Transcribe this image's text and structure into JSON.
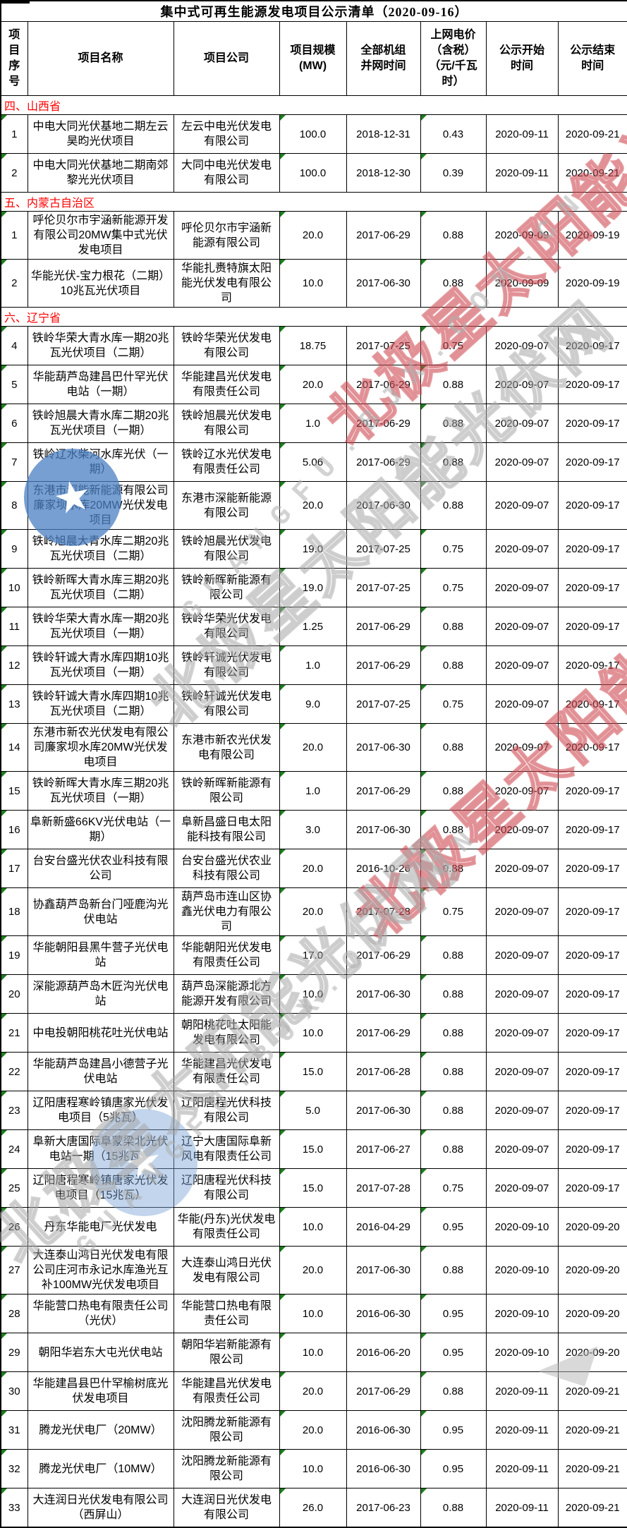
{
  "title": "集中式可再生能源发电项目公示清单（2020-09-16）",
  "columns": [
    "项目序号",
    "项目名称",
    "项目公司",
    "项目规模(MW)",
    "全部机组并网时间",
    "上网电价（含税）（元/千瓦时）",
    "公示开始时间",
    "公示结束时间"
  ],
  "green_marker_columns": [
    0,
    3,
    5
  ],
  "sections": [
    {
      "label": "四、山西省",
      "rows": [
        [
          "1",
          "中电大同光伏基地二期左云昊昀光伏项目",
          "左云中电光伏发电有限公司",
          "100.0",
          "2018-12-31",
          "0.43",
          "2020-09-11",
          "2020-09-21"
        ],
        [
          "2",
          "中电大同光伏基地二期南郊黎光光伏项目",
          "大同中电光伏发电有限公司",
          "100.0",
          "2018-12-30",
          "0.39",
          "2020-09-11",
          "2020-09-21"
        ]
      ]
    },
    {
      "label": "五、内蒙古自治区",
      "rows": [
        [
          "1",
          "呼伦贝尔市宇涵新能源开发有限公司20MW集中式光伏发电项目",
          "呼伦贝尔市宇涵新能源有限公司",
          "20.0",
          "2017-06-29",
          "0.88",
          "2020-09-09",
          "2020-09-19"
        ],
        [
          "2",
          "华能光伏-宝力根花（二期）10兆瓦光伏项目",
          "华能扎赉特旗太阳能光伏发电有限公司",
          "10.0",
          "2017-06-30",
          "0.88",
          "2020-09-09",
          "2020-09-19"
        ]
      ]
    },
    {
      "label": "六、辽宁省",
      "rows": [
        [
          "4",
          "铁岭华荣大青水库一期20兆瓦光伏项目（二期）",
          "铁岭华荣光伏发电有限公司",
          "18.75",
          "2017-07-25",
          "0.75",
          "2020-09-07",
          "2020-09-17"
        ],
        [
          "5",
          "华能葫芦岛建昌巴什罕光伏电站（一期）",
          "华能建昌光伏发电有限责任公司",
          "20.0",
          "2017-06-29",
          "0.88",
          "2020-09-07",
          "2020-09-17"
        ],
        [
          "6",
          "铁岭旭晨大青水库二期20兆瓦光伏项目（一期）",
          "铁岭旭晨光伏发电有限公司",
          "1.0",
          "2017-06-29",
          "0.88",
          "2020-09-07",
          "2020-09-17"
        ],
        [
          "7",
          "铁岭辽水柴河水库光伏（一期）",
          "铁岭辽水光伏发电有限责任公司",
          "5.06",
          "2017-06-29",
          "0.88",
          "2020-09-07",
          "2020-09-17"
        ],
        [
          "8",
          "东港市深能新能源有限公司廉家坝水库20MW光伏发电项目",
          "东港市深能新能源有限公司",
          "20.0",
          "2017-06-30",
          "0.88",
          "2020-09-07",
          "2020-09-17"
        ],
        [
          "9",
          "铁岭旭晨大青水库二期20兆瓦光伏项目（二期）",
          "铁岭旭晨光伏发电有限公司",
          "19.0",
          "2017-07-25",
          "0.75",
          "2020-09-07",
          "2020-09-17"
        ],
        [
          "10",
          "铁岭新晖大青水库三期20兆瓦光伏项目（二期）",
          "铁岭新晖新能源有限公司",
          "19.0",
          "2017-07-25",
          "0.75",
          "2020-09-07",
          "2020-09-17"
        ],
        [
          "11",
          "铁岭华荣大青水库一期20兆瓦光伏项目（一期）",
          "铁岭华荣光伏发电有限公司",
          "1.25",
          "2017-06-29",
          "0.88",
          "2020-09-07",
          "2020-09-17"
        ],
        [
          "12",
          "铁岭轩诚大青水库四期10兆瓦光伏项目（一期）",
          "铁岭轩诚光伏发电有限公司",
          "1.0",
          "2017-06-29",
          "0.88",
          "2020-09-07",
          "2020-09-17"
        ],
        [
          "13",
          "铁岭轩诚大青水库四期10兆瓦光伏项目（二期）",
          "铁岭轩诚光伏发电有限公司",
          "9.0",
          "2017-07-25",
          "0.75",
          "2020-09-07",
          "2020-09-17"
        ],
        [
          "14",
          "东港市新农光伏发电有限公司廉家坝水库20MW光伏发电项目",
          "东港市新农光伏发电有限公司",
          "20.0",
          "2017-06-30",
          "0.88",
          "2020-09-07",
          "2020-09-17"
        ],
        [
          "15",
          "铁岭新晖大青水库三期20兆瓦光伏项目（一期）",
          "铁岭新晖新能源有限公司",
          "1.0",
          "2017-06-29",
          "0.88",
          "2020-09-07",
          "2020-09-17"
        ],
        [
          "16",
          "阜新新盛66KV光伏电站（一期）",
          "阜新昌盛日电太阳能科技有限公司",
          "3.0",
          "2017-06-30",
          "0.88",
          "2020-09-07",
          "2020-09-17"
        ],
        [
          "17",
          "台安台盛光伏农业科技有限公司",
          "台安台盛光伏农业科技有限公司",
          "20.0",
          "2016-10-26",
          "0.88",
          "2020-09-07",
          "2020-09-17"
        ],
        [
          "18",
          "协鑫葫芦岛新台门哑鹿沟光伏电站",
          "葫芦岛市连山区协鑫光伏电力有限公司",
          "20.0",
          "2017-07-28",
          "0.75",
          "2020-09-07",
          "2020-09-17"
        ],
        [
          "19",
          "华能朝阳县黑牛营子光伏电站",
          "华能朝阳光伏发电有限责任公司",
          "17.0",
          "2017-06-29",
          "0.88",
          "2020-09-07",
          "2020-09-17"
        ],
        [
          "20",
          "深能源葫芦岛木匠沟光伏电站",
          "葫芦岛深能源北方能源开发有限公司",
          "10.0",
          "2017-06-30",
          "0.88",
          "2020-09-07",
          "2020-09-17"
        ],
        [
          "21",
          "中电投朝阳桃花吐光伏电站",
          "朝阳桃花吐太阳能发电有限公司",
          "10.0",
          "2017-06-29",
          "0.88",
          "2020-09-07",
          "2020-09-17"
        ],
        [
          "22",
          "华能葫芦岛建昌小德营子光伏电站",
          "华能建昌光伏发电有限责任公司",
          "15.0",
          "2017-06-28",
          "0.88",
          "2020-09-07",
          "2020-09-17"
        ],
        [
          "23",
          "辽阳唐程寒岭镇唐家光伏发电项目（5兆瓦）",
          "辽阳唐程光伏科技有限公司",
          "5.0",
          "2017-06-30",
          "0.88",
          "2020-09-07",
          "2020-09-17"
        ],
        [
          "24",
          "阜新大唐国际阜蒙梁北光伏电站一期（15兆瓦）",
          "辽宁大唐国际阜新风电有限责任公司",
          "15.0",
          "2017-06-27",
          "0.88",
          "2020-09-07",
          "2020-09-17"
        ],
        [
          "25",
          "辽阳唐程寒岭镇唐家光伏发电项目（15兆瓦）",
          "辽阳唐程光伏科技有限公司",
          "15.0",
          "2017-07-28",
          "0.75",
          "2020-09-07",
          "2020-09-17"
        ],
        [
          "26",
          "丹东华能电厂光伏发电",
          "华能(丹东)光伏发电有限责任公司",
          "10.0",
          "2016-04-29",
          "0.95",
          "2020-09-10",
          "2020-09-20"
        ],
        [
          "27",
          "大连泰山鸿日光伏发电有限公司庄河市永记水库渔光互补100MW光伏发电项目",
          "大连泰山鸿日光伏发电有限公司",
          "20.0",
          "2017-06-30",
          "0.88",
          "2020-09-10",
          "2020-09-20"
        ],
        [
          "28",
          "华能营口热电有限责任公司（光伏）",
          "华能营口热电有限责任公司",
          "10.0",
          "2016-06-30",
          "0.95",
          "2020-09-10",
          "2020-09-20"
        ],
        [
          "29",
          "朝阳华岩东大屯光伏电站",
          "朝阳华岩新能源有限公司",
          "10.0",
          "2016-06-20",
          "0.95",
          "2020-09-10",
          "2020-09-20"
        ],
        [
          "30",
          "华能建昌县巴什罕榆树底光伏发电项目",
          "华能建昌光伏发电有限责任公司",
          "20.0",
          "2017-06-29",
          "0.88",
          "2020-09-11",
          "2020-09-21"
        ],
        [
          "31",
          "腾龙光伏电厂（20MW）",
          "沈阳腾龙新能源有限公司",
          "20.0",
          "2016-06-30",
          "0.95",
          "2020-09-11",
          "2020-09-21"
        ],
        [
          "32",
          "腾龙光伏电厂（10MW）",
          "沈阳腾龙新能源有限公司",
          "10.0",
          "2016-06-30",
          "0.95",
          "2020-09-11",
          "2020-09-21"
        ],
        [
          "33",
          "大连润日光伏发电有限公司（西屏山）",
          "大连润日光伏发电有限公司",
          "26.0",
          "2017-06-23",
          "0.88",
          "2020-09-11",
          "2020-09-21"
        ]
      ]
    }
  ],
  "watermark": {
    "cjk_text": "北极星太阳能光伏网",
    "latin_text": "GUANGFU.BJX.COM.CN",
    "star_glyph": "★",
    "red_color": "#cd4a52",
    "gray_color": "#a5a5a5",
    "blue_color": "#4a7fc1"
  },
  "colors": {
    "section_text": "#ff0000",
    "border": "#000000",
    "green_marker": "#1e7d1e",
    "background": "#ffffff"
  }
}
